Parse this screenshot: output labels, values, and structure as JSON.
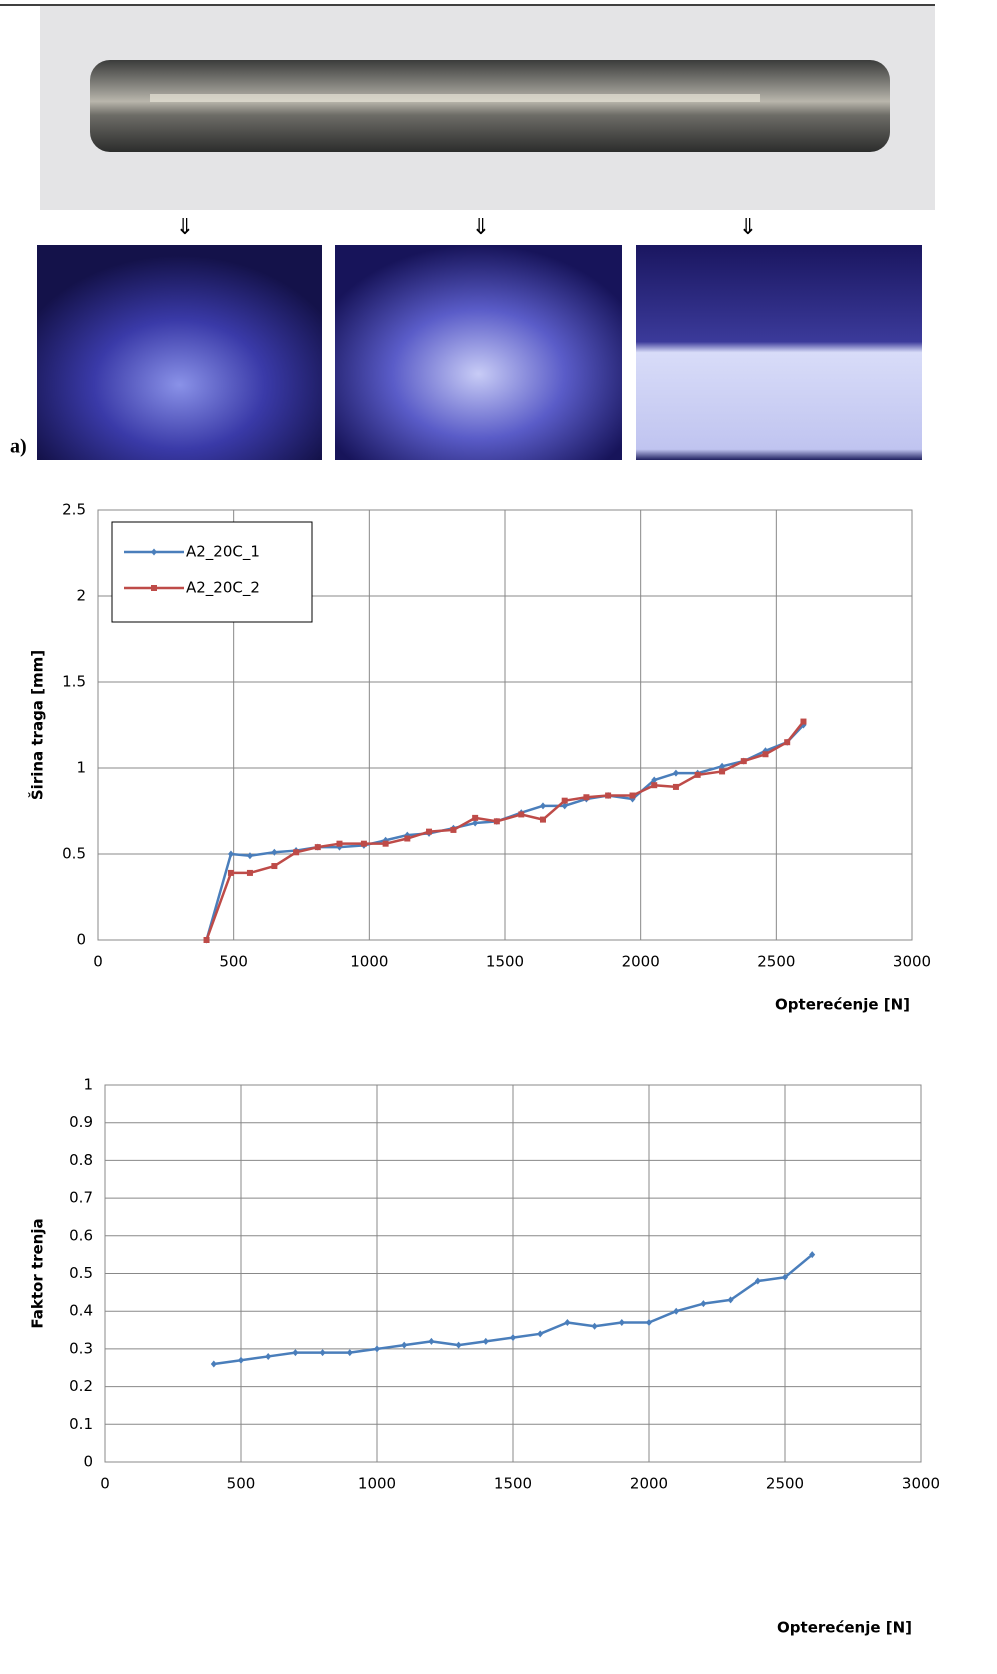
{
  "figure_label": "a)",
  "chart_data": [
    {
      "type": "line",
      "y_label": "Širina traga [mm]",
      "x_label": "Opterećenje [N]",
      "x": [
        400,
        490,
        560,
        650,
        730,
        810,
        890,
        980,
        1060,
        1140,
        1220,
        1310,
        1390,
        1470,
        1560,
        1640,
        1720,
        1800,
        1880,
        1970,
        2050,
        2130,
        2210,
        2300,
        2380,
        2460,
        2540,
        2600
      ],
      "series": [
        {
          "name": "A2_20C_1",
          "color": "#4a7ebb",
          "marker": "diamond",
          "values": [
            0,
            0.5,
            0.49,
            0.51,
            0.52,
            0.54,
            0.54,
            0.55,
            0.58,
            0.61,
            0.62,
            0.65,
            0.68,
            0.69,
            0.74,
            0.78,
            0.78,
            0.82,
            0.84,
            0.82,
            0.93,
            0.97,
            0.97,
            1.01,
            1.04,
            1.1,
            1.15,
            1.25
          ]
        },
        {
          "name": "A2_20C_2",
          "color": "#be4b48",
          "marker": "square",
          "values": [
            0,
            0.39,
            0.39,
            0.43,
            0.51,
            0.54,
            0.56,
            0.56,
            0.56,
            0.59,
            0.63,
            0.64,
            0.71,
            0.69,
            0.73,
            0.7,
            0.81,
            0.83,
            0.84,
            0.84,
            0.9,
            0.89,
            0.96,
            0.98,
            1.04,
            1.08,
            1.15,
            1.27
          ]
        }
      ],
      "xlim": [
        0,
        3000
      ],
      "xticks": [
        0,
        500,
        1000,
        1500,
        2000,
        2500,
        3000
      ],
      "ylim": [
        0,
        2.5
      ],
      "yticks": [
        0,
        0.5,
        1,
        1.5,
        2,
        2.5
      ],
      "grid": true,
      "legend": "top-left"
    },
    {
      "type": "line",
      "y_label": "Faktor trenja",
      "x_label": "Opterećenje [N]",
      "x": [
        400,
        500,
        600,
        700,
        800,
        900,
        1000,
        1100,
        1200,
        1300,
        1400,
        1500,
        1600,
        1700,
        1800,
        1900,
        2000,
        2100,
        2200,
        2300,
        2400,
        2500,
        2600
      ],
      "series": [
        {
          "name": null,
          "color": "#4a7ebb",
          "marker": "diamond",
          "values": [
            0.26,
            0.27,
            0.28,
            0.29,
            0.29,
            0.29,
            0.3,
            0.31,
            0.32,
            0.31,
            0.32,
            0.33,
            0.34,
            0.37,
            0.36,
            0.37,
            0.37,
            0.4,
            0.42,
            0.43,
            0.48,
            0.49,
            0.55
          ]
        }
      ],
      "xlim": [
        0,
        3000
      ],
      "xticks": [
        0,
        500,
        1000,
        1500,
        2000,
        2500,
        3000
      ],
      "ylim": [
        0,
        1
      ],
      "yticks": [
        0,
        0.1,
        0.2,
        0.3,
        0.4,
        0.5,
        0.6,
        0.7,
        0.8,
        0.9,
        1
      ],
      "grid": true,
      "legend": null
    }
  ]
}
